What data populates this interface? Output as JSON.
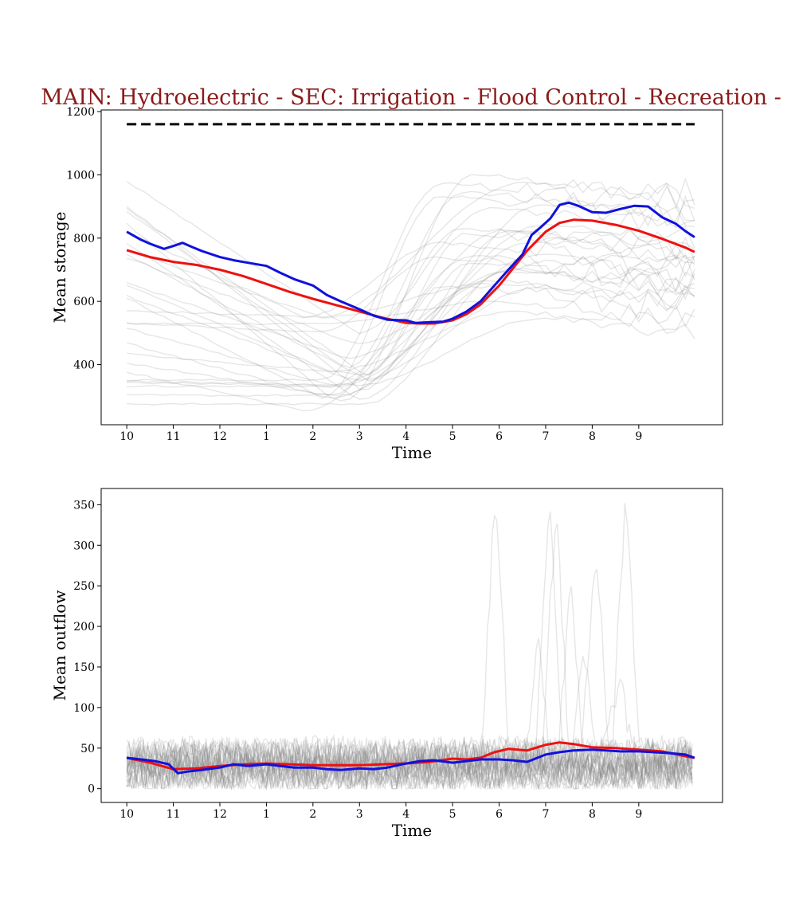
{
  "figure": {
    "title": "MAIN: Hydroelectric - SEC: Irrigation - Flood Control - Recreation -",
    "title_color": "#8b1a1a"
  },
  "chart_data": [
    {
      "type": "line",
      "xlabel": "Time",
      "ylabel": "Mean storage",
      "x_ticks": [
        {
          "label": "10",
          "x": 0
        },
        {
          "label": "11",
          "x": 1
        },
        {
          "label": "12",
          "x": 2
        },
        {
          "label": "1",
          "x": 3
        },
        {
          "label": "2",
          "x": 4
        },
        {
          "label": "3",
          "x": 5
        },
        {
          "label": "4",
          "x": 6
        },
        {
          "label": "5",
          "x": 7
        },
        {
          "label": "6",
          "x": 8
        },
        {
          "label": "7",
          "x": 9
        },
        {
          "label": "8",
          "x": 10
        },
        {
          "label": "9",
          "x": 11
        }
      ],
      "xlim": [
        -0.55,
        12.8
      ],
      "ylim": [
        210,
        1205
      ],
      "y_ticks": [
        400,
        600,
        800,
        1000,
        1200
      ],
      "grid": false,
      "reference_line": {
        "y": 1160,
        "style": "dashed",
        "color": "#000000"
      },
      "series": [
        {
          "color": "#ee1111",
          "x": [
            0,
            0.5,
            1,
            1.5,
            2,
            2.5,
            3,
            3.5,
            4,
            4.5,
            5,
            5.5,
            6,
            6.3,
            6.6,
            7,
            7.3,
            7.6,
            8,
            8.3,
            8.6,
            9,
            9.3,
            9.6,
            10,
            10.5,
            11,
            11.5,
            12,
            12.2
          ],
          "y": [
            762,
            740,
            725,
            715,
            700,
            680,
            655,
            630,
            608,
            588,
            568,
            548,
            532,
            530,
            530,
            540,
            560,
            590,
            650,
            705,
            760,
            820,
            848,
            858,
            855,
            842,
            823,
            798,
            770,
            756
          ]
        },
        {
          "color": "#1111dd",
          "x": [
            0,
            0.3,
            0.5,
            0.8,
            1,
            1.2,
            1.4,
            1.6,
            2,
            2.3,
            2.6,
            3,
            3.3,
            3.6,
            4,
            4.3,
            4.6,
            5,
            5.3,
            5.6,
            6,
            6.2,
            6.5,
            6.8,
            7,
            7.3,
            7.6,
            7.9,
            8.2,
            8.5,
            8.7,
            8.9,
            9.1,
            9.3,
            9.5,
            9.7,
            10,
            10.3,
            10.6,
            10.9,
            11.2,
            11.5,
            11.8,
            12,
            12.2
          ],
          "y": [
            820,
            795,
            782,
            766,
            775,
            785,
            772,
            760,
            740,
            730,
            722,
            712,
            690,
            670,
            650,
            620,
            600,
            575,
            555,
            542,
            540,
            532,
            534,
            536,
            545,
            568,
            600,
            650,
            700,
            748,
            810,
            835,
            862,
            905,
            912,
            902,
            882,
            880,
            892,
            902,
            900,
            866,
            845,
            822,
            803
          ]
        }
      ]
    },
    {
      "type": "line",
      "xlabel": "Time",
      "ylabel": "Mean outflow",
      "x_ticks": [
        {
          "label": "10",
          "x": 0
        },
        {
          "label": "11",
          "x": 1
        },
        {
          "label": "12",
          "x": 2
        },
        {
          "label": "1",
          "x": 3
        },
        {
          "label": "2",
          "x": 4
        },
        {
          "label": "3",
          "x": 5
        },
        {
          "label": "4",
          "x": 6
        },
        {
          "label": "5",
          "x": 7
        },
        {
          "label": "6",
          "x": 8
        },
        {
          "label": "7",
          "x": 9
        },
        {
          "label": "8",
          "x": 10
        },
        {
          "label": "9",
          "x": 11
        }
      ],
      "xlim": [
        -0.55,
        12.8
      ],
      "ylim": [
        -17,
        370
      ],
      "y_ticks": [
        0,
        50,
        100,
        150,
        200,
        250,
        300,
        350
      ],
      "grid": false,
      "series": [
        {
          "color": "#ee1111",
          "x": [
            0,
            0.5,
            1,
            1.5,
            2,
            2.5,
            3,
            3.5,
            4,
            4.5,
            5,
            5.5,
            6,
            6.5,
            7,
            7.3,
            7.6,
            7.9,
            8.2,
            8.6,
            9,
            9.3,
            9.6,
            10,
            10.5,
            11,
            11.5,
            12,
            12.2
          ],
          "y": [
            38,
            32,
            24,
            25,
            28,
            30,
            31,
            30,
            29,
            29,
            29,
            30,
            31,
            33,
            37,
            36,
            38,
            45,
            49,
            47,
            54,
            57,
            55,
            51,
            50,
            48,
            46,
            40,
            38
          ]
        },
        {
          "color": "#1111dd",
          "x": [
            0,
            0.3,
            0.6,
            0.9,
            1.1,
            1.3,
            1.6,
            2,
            2.3,
            2.6,
            3,
            3.3,
            3.6,
            4,
            4.3,
            4.6,
            5,
            5.3,
            5.6,
            6,
            6.3,
            6.6,
            7,
            7.3,
            7.6,
            8,
            8.3,
            8.6,
            9,
            9.3,
            9.6,
            10,
            10.3,
            10.6,
            11,
            11.3,
            11.6,
            12,
            12.2
          ],
          "y": [
            38,
            36,
            34,
            30,
            19,
            21,
            23,
            26,
            30,
            28,
            30,
            28,
            26,
            26,
            24,
            23,
            25,
            24,
            26,
            31,
            34,
            35,
            32,
            34,
            36,
            36,
            35,
            33,
            42,
            45,
            47,
            48,
            47,
            46,
            46,
            45,
            44,
            42,
            38
          ]
        }
      ]
    }
  ]
}
